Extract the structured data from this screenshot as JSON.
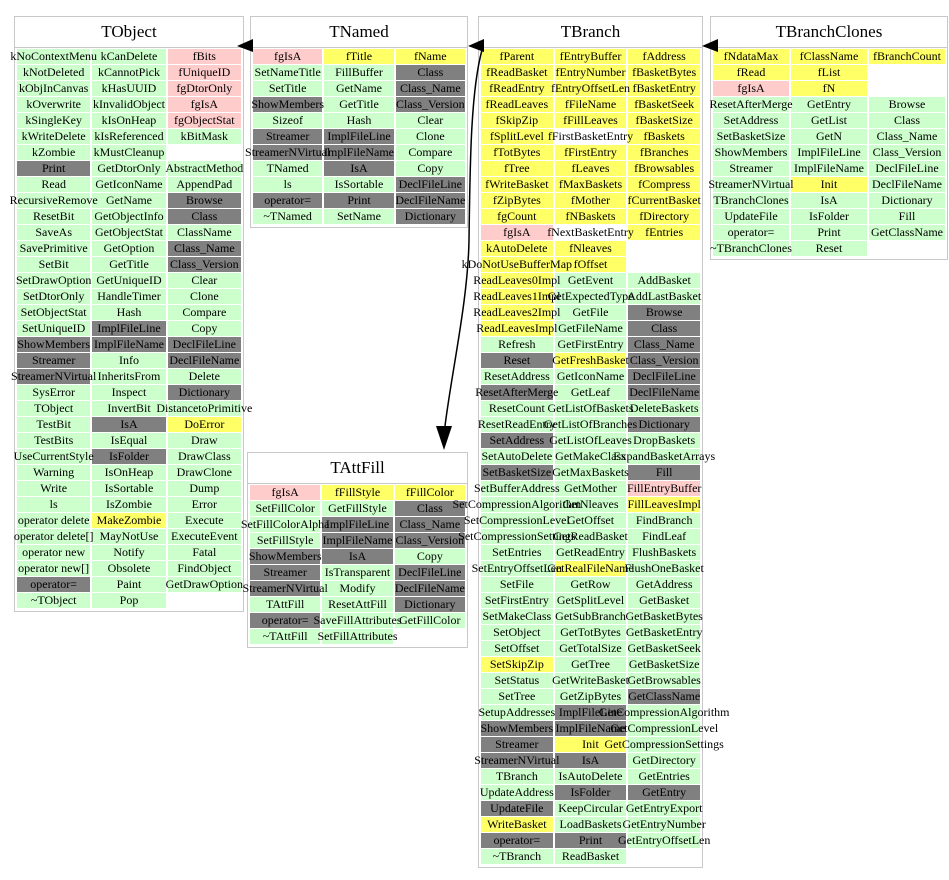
{
  "palette": {
    "g": "#ccffcc",
    "y": "#ffff66",
    "p": "#ffcccc",
    "d": "#808080",
    "w": "#ffffff"
  },
  "edges": [
    {
      "from": "TNamed",
      "to": "TObject"
    },
    {
      "from": "TBranch",
      "to": "TNamed"
    },
    {
      "from": "TBranchClones",
      "to": "TBranch"
    },
    {
      "from": "TBranch",
      "to": "TAttFill"
    }
  ],
  "classes": [
    {
      "name": "TObject",
      "columns": [
        [
          "kNoContextMenu",
          "kNotDeleted",
          "kObjInCanvas",
          "kOverwrite",
          "kSingleKey",
          "kWriteDelete",
          "kZombie",
          [
            "Print",
            "d"
          ],
          "Read",
          "RecursiveRemove",
          "ResetBit",
          "SaveAs",
          "SavePrimitive",
          "SetBit",
          "SetDrawOption",
          "SetDtorOnly",
          "SetObjectStat",
          "SetUniqueID",
          [
            "ShowMembers",
            "d"
          ],
          [
            "Streamer",
            "d"
          ],
          [
            "StreamerNVirtual",
            "d"
          ],
          "SysError",
          "TObject",
          "TestBit",
          "TestBits",
          "UseCurrentStyle",
          "Warning",
          "Write",
          "ls",
          "operator delete",
          "operator delete[]",
          "operator new",
          "operator new[]",
          [
            "operator=",
            "d"
          ],
          "~TObject"
        ],
        [
          "kCanDelete",
          "kCannotPick",
          "kHasUUID",
          "kInvalidObject",
          "kIsOnHeap",
          "kIsReferenced",
          "kMustCleanup",
          "GetDtorOnly",
          "GetIconName",
          "GetName",
          "GetObjectInfo",
          "GetObjectStat",
          "GetOption",
          "GetTitle",
          "GetUniqueID",
          "HandleTimer",
          "Hash",
          [
            "ImplFileLine",
            "d"
          ],
          [
            "ImplFileName",
            "d"
          ],
          "Info",
          "InheritsFrom",
          "Inspect",
          "InvertBit",
          [
            "IsA",
            "d"
          ],
          "IsEqual",
          [
            "IsFolder",
            "d"
          ],
          "IsOnHeap",
          "IsSortable",
          "IsZombie",
          [
            "MakeZombie",
            "y"
          ],
          "MayNotUse",
          "Notify",
          "Obsolete",
          "Paint",
          "Pop"
        ],
        [
          [
            "fBits",
            "p"
          ],
          [
            "fUniqueID",
            "p"
          ],
          [
            "fgDtorOnly",
            "p"
          ],
          [
            "fgIsA",
            "p"
          ],
          [
            "fgObjectStat",
            "p"
          ],
          "kBitMask",
          [
            "",
            "w"
          ],
          "AbstractMethod",
          "AppendPad",
          [
            "Browse",
            "d"
          ],
          [
            "Class",
            "d"
          ],
          "ClassName",
          [
            "Class_Name",
            "d"
          ],
          [
            "Class_Version",
            "d"
          ],
          "Clear",
          "Clone",
          "Compare",
          "Copy",
          [
            "DeclFileLine",
            "d"
          ],
          [
            "DeclFileName",
            "d"
          ],
          "Delete",
          [
            "Dictionary",
            "d"
          ],
          "DistancetoPrimitive",
          [
            "DoError",
            "y"
          ],
          "Draw",
          "DrawClass",
          "DrawClone",
          "Dump",
          "Error",
          "Execute",
          "ExecuteEvent",
          "Fatal",
          "FindObject",
          "GetDrawOption",
          [
            "",
            "w"
          ]
        ]
      ]
    },
    {
      "name": "TNamed",
      "columns": [
        [
          [
            "fgIsA",
            "p"
          ],
          "SetNameTitle",
          "SetTitle",
          [
            "ShowMembers",
            "d"
          ],
          "Sizeof",
          [
            "Streamer",
            "d"
          ],
          [
            "StreamerNVirtual",
            "d"
          ],
          "TNamed",
          "ls",
          [
            "operator=",
            "d"
          ],
          "~TNamed"
        ],
        [
          [
            "fTitle",
            "y"
          ],
          "FillBuffer",
          "GetName",
          "GetTitle",
          "Hash",
          [
            "ImplFileLine",
            "d"
          ],
          [
            "ImplFileName",
            "d"
          ],
          [
            "IsA",
            "d"
          ],
          "IsSortable",
          [
            "Print",
            "d"
          ],
          "SetName"
        ],
        [
          [
            "fName",
            "y"
          ],
          [
            "Class",
            "d"
          ],
          [
            "Class_Name",
            "d"
          ],
          [
            "Class_Version",
            "d"
          ],
          "Clear",
          "Clone",
          "Compare",
          "Copy",
          [
            "DeclFileLine",
            "d"
          ],
          [
            "DeclFileName",
            "d"
          ],
          [
            "Dictionary",
            "d"
          ]
        ]
      ]
    },
    {
      "name": "TBranch",
      "columns": [
        [
          [
            "fParent",
            "y"
          ],
          [
            "fReadBasket",
            "y"
          ],
          [
            "fReadEntry",
            "y"
          ],
          [
            "fReadLeaves",
            "y"
          ],
          [
            "fSkipZip",
            "y"
          ],
          [
            "fSplitLevel",
            "y"
          ],
          [
            "fTotBytes",
            "y"
          ],
          [
            "fTree",
            "y"
          ],
          [
            "fWriteBasket",
            "y"
          ],
          [
            "fZipBytes",
            "y"
          ],
          [
            "fgCount",
            "y"
          ],
          [
            "fgIsA",
            "p"
          ],
          [
            "kAutoDelete",
            "y"
          ],
          [
            "kDoNotUseBufferMap",
            "y"
          ],
          [
            "ReadLeaves0Impl",
            "y"
          ],
          [
            "ReadLeaves1Impl",
            "y"
          ],
          [
            "ReadLeaves2Impl",
            "y"
          ],
          [
            "ReadLeavesImpl",
            "y"
          ],
          "Refresh",
          [
            "Reset",
            "d"
          ],
          "ResetAddress",
          [
            "ResetAfterMerge",
            "d"
          ],
          "ResetCount",
          "ResetReadEntry",
          [
            "SetAddress",
            "d"
          ],
          "SetAutoDelete",
          [
            "SetBasketSize",
            "d"
          ],
          "SetBufferAddress",
          "SetCompressionAlgorithm",
          "SetCompressionLevel",
          "SetCompressionSettings",
          "SetEntries",
          "SetEntryOffsetLen",
          "SetFile",
          "SetFirstEntry",
          "SetMakeClass",
          "SetObject",
          "SetOffset",
          [
            "SetSkipZip",
            "y"
          ],
          "SetStatus",
          "SetTree",
          "SetupAddresses",
          [
            "ShowMembers",
            "d"
          ],
          [
            "Streamer",
            "d"
          ],
          [
            "StreamerNVirtual",
            "d"
          ],
          "TBranch",
          "UpdateAddress",
          [
            "UpdateFile",
            "d"
          ],
          [
            "WriteBasket",
            "y"
          ],
          [
            "operator=",
            "d"
          ],
          "~TBranch"
        ],
        [
          [
            "fEntryBuffer",
            "y"
          ],
          [
            "fEntryNumber",
            "y"
          ],
          [
            "fEntryOffsetLen",
            "y"
          ],
          [
            "fFileName",
            "y"
          ],
          [
            "fFillLeaves",
            "y"
          ],
          [
            "fFirstBasketEntry",
            "w"
          ],
          [
            "fFirstEntry",
            "y"
          ],
          [
            "fLeaves",
            "y"
          ],
          [
            "fMaxBaskets",
            "y"
          ],
          [
            "fMother",
            "y"
          ],
          [
            "fNBaskets",
            "y"
          ],
          [
            "fNextBasketEntry",
            "w"
          ],
          [
            "fNleaves",
            "y"
          ],
          [
            "fOffset",
            "y"
          ],
          "GetEvent",
          "GetExpectedType",
          "GetFile",
          "GetFileName",
          "GetFirstEntry",
          [
            "GetFreshBasket",
            "y"
          ],
          "GetIconName",
          "GetLeaf",
          "GetListOfBaskets",
          "GetListOfBranches",
          "GetListOfLeaves",
          "GetMakeClass",
          "GetMaxBaskets",
          "GetMother",
          "GetNleaves",
          "GetOffset",
          "GetReadBasket",
          "GetReadEntry",
          [
            "GetRealFileName",
            "y"
          ],
          "GetRow",
          "GetSplitLevel",
          "GetSubBranch",
          "GetTotBytes",
          "GetTotalSize",
          "GetTree",
          "GetWriteBasket",
          "GetZipBytes",
          [
            "ImplFileLine",
            "d"
          ],
          [
            "ImplFileName",
            "d"
          ],
          [
            "Init",
            "y"
          ],
          [
            "IsA",
            "d"
          ],
          "IsAutoDelete",
          [
            "IsFolder",
            "d"
          ],
          "KeepCircular",
          "LoadBaskets",
          [
            "Print",
            "d"
          ],
          "ReadBasket"
        ],
        [
          [
            "fAddress",
            "y"
          ],
          [
            "fBasketBytes",
            "y"
          ],
          [
            "fBasketEntry",
            "y"
          ],
          [
            "fBasketSeek",
            "y"
          ],
          [
            "fBasketSize",
            "y"
          ],
          [
            "fBaskets",
            "y"
          ],
          [
            "fBranches",
            "y"
          ],
          [
            "fBrowsables",
            "y"
          ],
          [
            "fCompress",
            "y"
          ],
          [
            "fCurrentBasket",
            "y"
          ],
          [
            "fDirectory",
            "y"
          ],
          [
            "fEntries",
            "y"
          ],
          [
            "",
            "w"
          ],
          [
            "",
            "w"
          ],
          "AddBasket",
          "AddLastBasket",
          [
            "Browse",
            "d"
          ],
          [
            "Class",
            "d"
          ],
          [
            "Class_Name",
            "d"
          ],
          [
            "Class_Version",
            "d"
          ],
          [
            "DeclFileLine",
            "d"
          ],
          [
            "DeclFileName",
            "d"
          ],
          "DeleteBaskets",
          [
            "Dictionary",
            "d"
          ],
          "DropBaskets",
          "ExpandBasketArrays",
          [
            "Fill",
            "d"
          ],
          [
            "FillEntryBuffer",
            "p"
          ],
          [
            "FillLeavesImpl",
            "y"
          ],
          "FindBranch",
          "FindLeaf",
          "FlushBaskets",
          "FlushOneBasket",
          "GetAddress",
          "GetBasket",
          "GetBasketBytes",
          "GetBasketEntry",
          "GetBasketSeek",
          "GetBasketSize",
          "GetBrowsables",
          [
            "GetClassName",
            "d"
          ],
          "GetCompressionAlgorithm",
          "GetCompressionLevel",
          "GetCompressionSettings",
          "GetDirectory",
          "GetEntries",
          [
            "GetEntry",
            "d"
          ],
          "GetEntryExport",
          "GetEntryNumber",
          "GetEntryOffsetLen",
          [
            "",
            "w"
          ]
        ]
      ]
    },
    {
      "name": "TBranchClones",
      "columns": [
        [
          [
            "fNdataMax",
            "y"
          ],
          [
            "fRead",
            "y"
          ],
          [
            "fgIsA",
            "p"
          ],
          "ResetAfterMerge",
          "SetAddress",
          "SetBasketSize",
          "ShowMembers",
          "Streamer",
          "StreamerNVirtual",
          "TBranchClones",
          "UpdateFile",
          "operator=",
          "~TBranchClones"
        ],
        [
          [
            "fClassName",
            "y"
          ],
          [
            "fList",
            "y"
          ],
          [
            "fN",
            "y"
          ],
          "GetEntry",
          "GetList",
          "GetN",
          "ImplFileLine",
          "ImplFileName",
          [
            "Init",
            "y"
          ],
          "IsA",
          "IsFolder",
          "Print",
          "Reset"
        ],
        [
          [
            "fBranchCount",
            "y"
          ],
          [
            "",
            "w"
          ],
          [
            "",
            "w"
          ],
          "Browse",
          "Class",
          "Class_Name",
          "Class_Version",
          "DeclFileLine",
          "DeclFileName",
          "Dictionary",
          "Fill",
          "GetClassName",
          [
            "",
            "w"
          ]
        ]
      ]
    },
    {
      "name": "TAttFill",
      "columns": [
        [
          [
            "fgIsA",
            "p"
          ],
          "SetFillColor",
          "SetFillColorAlpha",
          "SetFillStyle",
          [
            "ShowMembers",
            "d"
          ],
          [
            "Streamer",
            "d"
          ],
          [
            "StreamerNVirtual",
            "d"
          ],
          "TAttFill",
          [
            "operator=",
            "d"
          ],
          "~TAttFill"
        ],
        [
          [
            "fFillStyle",
            "y"
          ],
          "GetFillStyle",
          [
            "ImplFileLine",
            "d"
          ],
          [
            "ImplFileName",
            "d"
          ],
          [
            "IsA",
            "d"
          ],
          "IsTransparent",
          "Modify",
          "ResetAttFill",
          "SaveFillAttributes",
          "SetFillAttributes"
        ],
        [
          [
            "fFillColor",
            "y"
          ],
          [
            "Class",
            "d"
          ],
          [
            "Class_Name",
            "d"
          ],
          [
            "Class_Version",
            "d"
          ],
          "Copy",
          [
            "DeclFileLine",
            "d"
          ],
          [
            "DeclFileName",
            "d"
          ],
          [
            "Dictionary",
            "d"
          ],
          "GetFillColor",
          [
            "",
            "w"
          ]
        ]
      ]
    }
  ]
}
